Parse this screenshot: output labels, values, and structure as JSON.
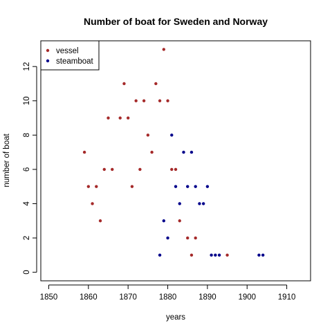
{
  "chart_data": {
    "type": "scatter",
    "title": "Number of boat for Sweden and Norway",
    "xlabel": "years",
    "ylabel": "number of boat",
    "xlim": [
      1848,
      1916
    ],
    "ylim": [
      -0.5,
      13.5
    ],
    "x_ticks": [
      1850,
      1860,
      1870,
      1880,
      1890,
      1900,
      1910
    ],
    "y_ticks": [
      0,
      2,
      4,
      6,
      8,
      10,
      12
    ],
    "grid": false,
    "legend_position": "top-left",
    "series": [
      {
        "name": "vessel",
        "color": "#a52a2a",
        "points": [
          [
            1859,
            7
          ],
          [
            1860,
            5
          ],
          [
            1861,
            4
          ],
          [
            1862,
            5
          ],
          [
            1863,
            3
          ],
          [
            1864,
            6
          ],
          [
            1865,
            9
          ],
          [
            1866,
            6
          ],
          [
            1868,
            9
          ],
          [
            1869,
            11
          ],
          [
            1870,
            9
          ],
          [
            1871,
            5
          ],
          [
            1872,
            10
          ],
          [
            1873,
            6
          ],
          [
            1874,
            10
          ],
          [
            1875,
            8
          ],
          [
            1876,
            7
          ],
          [
            1877,
            11
          ],
          [
            1878,
            10
          ],
          [
            1879,
            13
          ],
          [
            1880,
            10
          ],
          [
            1881,
            6
          ],
          [
            1882,
            6
          ],
          [
            1883,
            3
          ],
          [
            1885,
            2
          ],
          [
            1886,
            1
          ],
          [
            1887,
            2
          ],
          [
            1895,
            1
          ]
        ]
      },
      {
        "name": "steamboat",
        "color": "#00008b",
        "points": [
          [
            1878,
            1
          ],
          [
            1879,
            3
          ],
          [
            1880,
            2
          ],
          [
            1881,
            8
          ],
          [
            1882,
            5
          ],
          [
            1883,
            4
          ],
          [
            1884,
            7
          ],
          [
            1885,
            5
          ],
          [
            1886,
            7
          ],
          [
            1887,
            5
          ],
          [
            1888,
            4
          ],
          [
            1889,
            4
          ],
          [
            1890,
            5
          ],
          [
            1891,
            1
          ],
          [
            1892,
            1
          ],
          [
            1893,
            1
          ],
          [
            1903,
            1
          ],
          [
            1904,
            1
          ]
        ]
      }
    ]
  }
}
